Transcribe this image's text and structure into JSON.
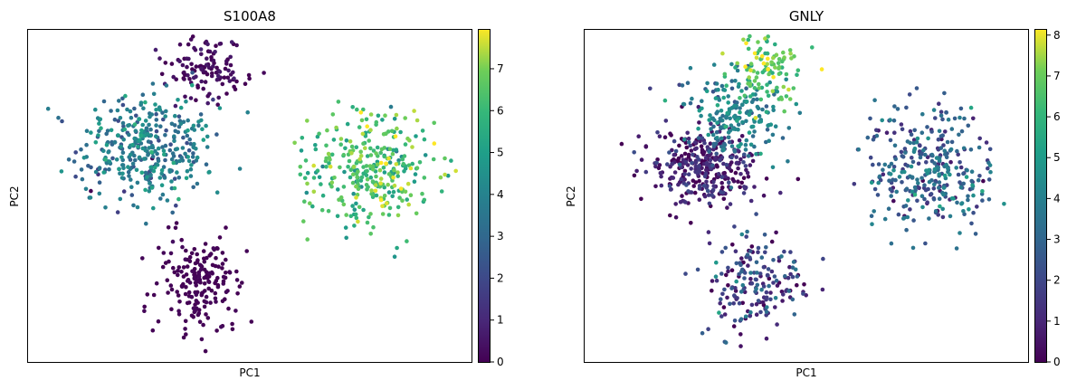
{
  "chart_data": [
    {
      "type": "scatter",
      "title": "S100A8",
      "xlabel": "PC1",
      "ylabel": "PC2",
      "colorbar": {
        "colormap": "viridis",
        "min": 0,
        "max": 7.95,
        "ticks": [
          0,
          1,
          2,
          3,
          4,
          5,
          6,
          7
        ]
      },
      "clusters": [
        {
          "label": "upper-left elongated cluster",
          "center": [
            -2.6,
            1.1
          ],
          "spread": [
            0.75,
            0.55
          ],
          "n": 380,
          "value_mean": 3.6,
          "value_sd": 0.9
        },
        {
          "label": "upper-left top cluster",
          "center": [
            -1.3,
            2.7
          ],
          "spread": [
            0.45,
            0.35
          ],
          "n": 120,
          "value_mean": 0.2,
          "value_sd": 0.3
        },
        {
          "label": "lower cluster",
          "center": [
            -1.4,
            -1.6
          ],
          "spread": [
            0.5,
            0.5
          ],
          "n": 190,
          "value_mean": 0.0,
          "value_sd": 0.1
        },
        {
          "label": "right cluster",
          "center": [
            2.4,
            0.7
          ],
          "spread": [
            0.7,
            0.6
          ],
          "n": 330,
          "value_mean": 6.3,
          "value_sd": 0.9
        }
      ]
    },
    {
      "type": "scatter",
      "title": "GNLY",
      "xlabel": "PC1",
      "ylabel": "PC2",
      "colorbar": {
        "colormap": "viridis",
        "min": 0,
        "max": 8.15,
        "ticks": [
          0,
          1,
          2,
          3,
          4,
          5,
          6,
          7,
          8
        ]
      },
      "clusters": [
        {
          "label": "upper-left elongated cluster",
          "center": [
            -2.6,
            0.7
          ],
          "spread": [
            0.6,
            0.4
          ],
          "n": 330,
          "value_mean": 0.6,
          "value_sd": 0.8
        },
        {
          "label": "upper-left middle cluster",
          "center": [
            -1.9,
            1.7
          ],
          "spread": [
            0.55,
            0.45
          ],
          "n": 200,
          "value_mean": 3.9,
          "value_sd": 0.9
        },
        {
          "label": "upper-left top cluster",
          "center": [
            -1.2,
            2.7
          ],
          "spread": [
            0.4,
            0.35
          ],
          "n": 110,
          "value_mean": 6.8,
          "value_sd": 0.8
        },
        {
          "label": "lower cluster",
          "center": [
            -1.4,
            -1.6
          ],
          "spread": [
            0.5,
            0.5
          ],
          "n": 190,
          "value_mean": 1.5,
          "value_sd": 1.4
        },
        {
          "label": "right cluster",
          "center": [
            2.4,
            0.7
          ],
          "spread": [
            0.7,
            0.6
          ],
          "n": 330,
          "value_mean": 2.8,
          "value_sd": 1.2
        }
      ]
    }
  ]
}
